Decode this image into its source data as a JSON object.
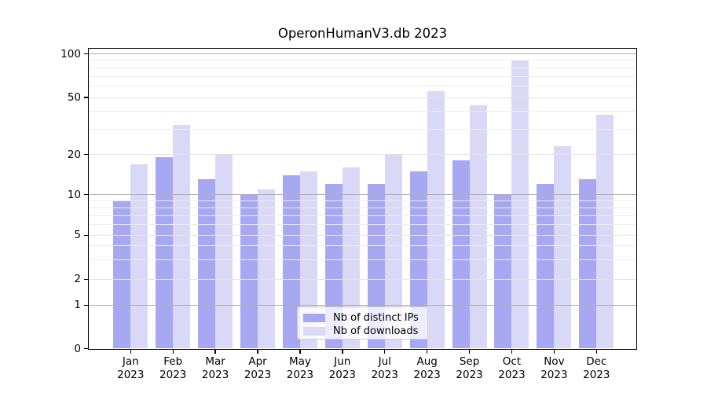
{
  "chart_data": {
    "type": "bar",
    "title": "OperonHumanV3.db 2023",
    "categories": [
      "Jan 2023",
      "Feb 2023",
      "Mar 2023",
      "Apr 2023",
      "May 2023",
      "Jun 2023",
      "Jul 2023",
      "Aug 2023",
      "Sep 2023",
      "Oct 2023",
      "Nov 2023",
      "Dec 2023"
    ],
    "month_labels": [
      "Jan",
      "Feb",
      "Mar",
      "Apr",
      "May",
      "Jun",
      "Jul",
      "Aug",
      "Sep",
      "Oct",
      "Nov",
      "Dec"
    ],
    "year": "2023",
    "series": [
      {
        "name": "Nb of distinct IPs",
        "color": "#a7a7f2",
        "values": [
          9,
          19,
          13,
          10,
          14,
          12,
          12,
          15,
          18,
          10,
          12,
          13
        ]
      },
      {
        "name": "Nb of downloads",
        "color": "#d9d9f7",
        "values": [
          17,
          32,
          20,
          11,
          15,
          16,
          20,
          55,
          44,
          90,
          23,
          38
        ]
      }
    ],
    "yaxis": {
      "scale": "symlog",
      "ylim": [
        0,
        108
      ],
      "tick_labels": [
        "0",
        "1",
        "2",
        "5",
        "10",
        "20",
        "50",
        "100"
      ],
      "tick_values": [
        0,
        1,
        2,
        5,
        10,
        20,
        50,
        100
      ],
      "decade_gridlines": [
        1,
        10,
        100
      ],
      "light_major_gridlines": [
        2,
        5,
        20,
        50
      ],
      "minor_gridlines": [
        3,
        4,
        6,
        7,
        8,
        9,
        30,
        40,
        60,
        70,
        80,
        90
      ]
    },
    "legend": {
      "position": "lower center"
    },
    "grid": true
  },
  "colors": {
    "decade_grid": "#b0b0b0",
    "major_grid": "#e4e4e4",
    "minor_grid": "#ededed",
    "spine": "#000000",
    "background": "#ffffff"
  }
}
